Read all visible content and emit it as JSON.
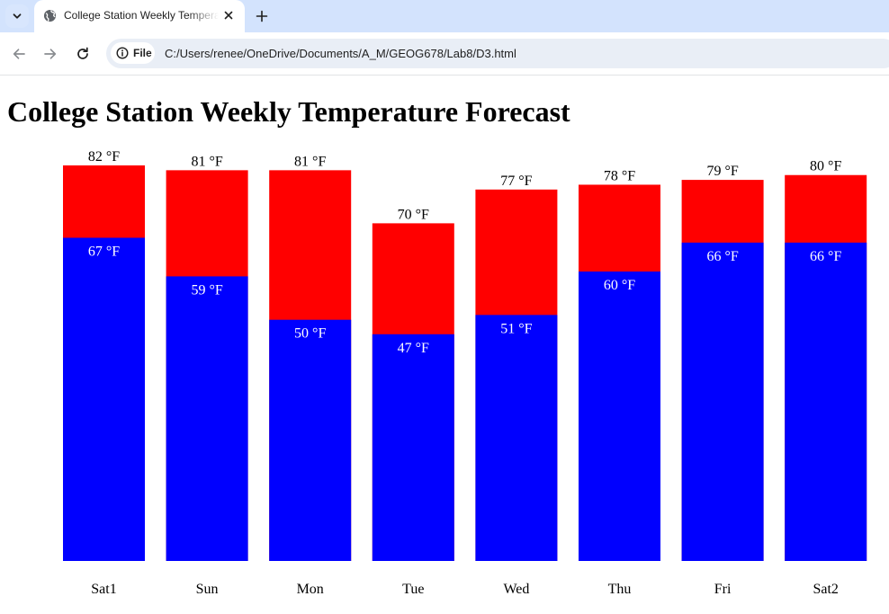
{
  "browser": {
    "tab_title": "College Station Weekly Temperature Forecast",
    "file_chip": "File",
    "url": "C:/Users/renee/OneDrive/Documents/A_M/GEOG678/Lab8/D3.html"
  },
  "page": {
    "title": "College Station Weekly Temperature Forecast"
  },
  "colors": {
    "high": "#ff0000",
    "low": "#0000ff",
    "low_label": "#ffffff",
    "high_label": "#000000"
  },
  "chart_data": {
    "type": "bar",
    "title": "College Station Weekly Temperature Forecast",
    "categories": [
      "Sat1",
      "Sun",
      "Mon",
      "Tue",
      "Wed",
      "Thu",
      "Fri",
      "Sat2"
    ],
    "series": [
      {
        "values": [
          82,
          81,
          81,
          70,
          77,
          78,
          79,
          80
        ]
      },
      {
        "values": [
          67,
          59,
          50,
          47,
          51,
          60,
          66,
          66
        ]
      }
    ],
    "high_labels": [
      "82 °F",
      "81 °F",
      "81 °F",
      "70 °F",
      "77 °F",
      "78 °F",
      "79 °F",
      "80 °F"
    ],
    "low_labels": [
      "67 °F",
      "59 °F",
      "50 °F",
      "47 °F",
      "51 °F",
      "60 °F",
      "66 °F",
      "66 °F"
    ],
    "xlabel": "",
    "ylabel": "",
    "ylim": [
      0,
      82
    ],
    "grid": false,
    "legend": "none"
  }
}
